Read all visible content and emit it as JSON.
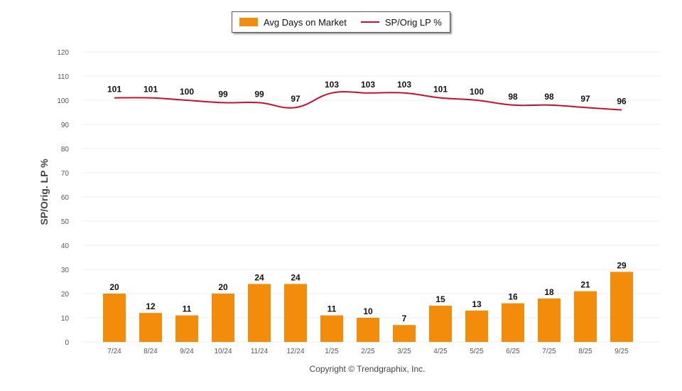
{
  "chart_data": {
    "type": "bar",
    "title": "",
    "xlabel": "",
    "ylabel": "SP/Orig. LP %",
    "ylim": [
      0,
      120
    ],
    "yticks": [
      0,
      10,
      20,
      30,
      40,
      50,
      60,
      70,
      80,
      90,
      100,
      110,
      120
    ],
    "grid": true,
    "legend_position": "top-center",
    "categories": [
      "7/24",
      "8/24",
      "9/24",
      "10/24",
      "11/24",
      "12/24",
      "1/25",
      "2/25",
      "3/25",
      "4/25",
      "5/25",
      "6/25",
      "7/25",
      "8/25",
      "9/25"
    ],
    "series": [
      {
        "name": "Avg Days on Market",
        "type": "bar",
        "color": "#f28c0a",
        "values": [
          20,
          12,
          11,
          20,
          24,
          24,
          11,
          10,
          7,
          15,
          13,
          16,
          18,
          21,
          29
        ]
      },
      {
        "name": "SP/Orig LP %",
        "type": "line",
        "color": "#c8102e",
        "values": [
          101,
          101,
          100,
          99,
          99,
          97,
          103,
          103,
          103,
          101,
          100,
          98,
          98,
          97,
          96
        ]
      }
    ]
  },
  "legend": {
    "bar_label": "Avg Days on Market",
    "line_label": "SP/Orig LP %"
  },
  "footer": {
    "copyright": "Copyright © Trendgraphix, Inc."
  }
}
